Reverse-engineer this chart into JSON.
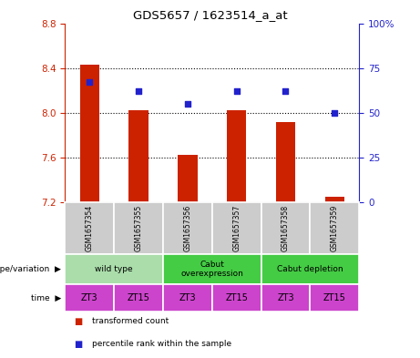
{
  "title": "GDS5657 / 1623514_a_at",
  "samples": [
    "GSM1657354",
    "GSM1657355",
    "GSM1657356",
    "GSM1657357",
    "GSM1657358",
    "GSM1657359"
  ],
  "bar_values": [
    8.43,
    8.02,
    7.62,
    8.02,
    7.92,
    7.25
  ],
  "bar_base": 7.2,
  "percentile_values": [
    67,
    62,
    55,
    62,
    62,
    50
  ],
  "ylim_left": [
    7.2,
    8.8
  ],
  "ylim_right": [
    0,
    100
  ],
  "yticks_left": [
    7.2,
    7.6,
    8.0,
    8.4,
    8.8
  ],
  "yticks_right": [
    0,
    25,
    50,
    75,
    100
  ],
  "ytick_labels_right": [
    "0",
    "25",
    "50",
    "75",
    "100%"
  ],
  "bar_color": "#cc2200",
  "dot_color": "#2222cc",
  "grid_color": "#000000",
  "groups": [
    {
      "label": "wild type",
      "span": [
        0,
        2
      ],
      "color": "#aaddaa"
    },
    {
      "label": "Cabut\noverexpression",
      "span": [
        2,
        4
      ],
      "color": "#44cc44"
    },
    {
      "label": "Cabut depletion",
      "span": [
        4,
        6
      ],
      "color": "#44cc44"
    }
  ],
  "time_labels": [
    "ZT3",
    "ZT15",
    "ZT3",
    "ZT15",
    "ZT3",
    "ZT15"
  ],
  "time_color": "#cc44cc",
  "genotype_label": "genotype/variation",
  "time_row_label": "time",
  "legend_bar_label": "transformed count",
  "legend_dot_label": "percentile rank within the sample",
  "left_axis_color": "#cc2200",
  "right_axis_color": "#2222cc",
  "sample_bg": "#cccccc",
  "bar_width": 0.4
}
